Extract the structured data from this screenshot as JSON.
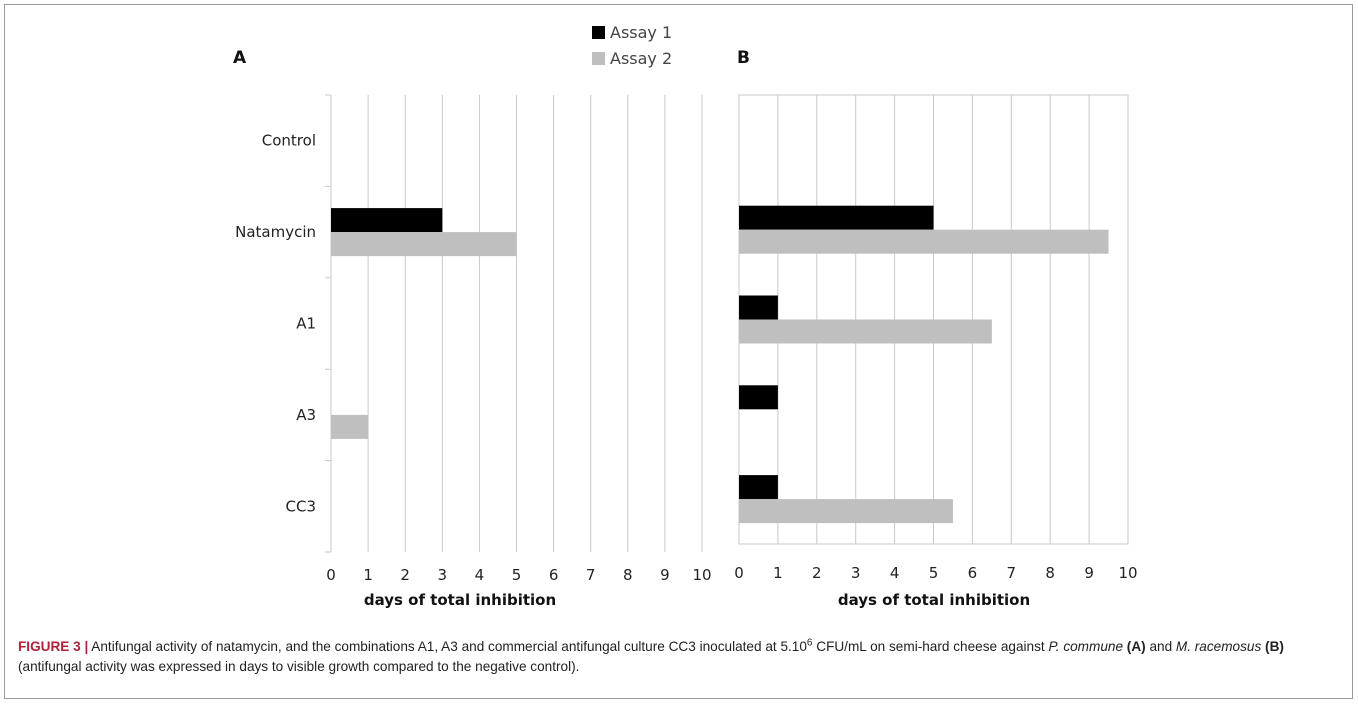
{
  "chart_data": [
    {
      "panel": "A",
      "type": "bar",
      "orientation": "horizontal",
      "categories": [
        "Control",
        "Natamycin",
        "A1",
        "A3",
        "CC3"
      ],
      "series": [
        {
          "name": "Assay 1",
          "color": "#000000",
          "values": [
            0,
            3,
            0,
            0,
            0
          ]
        },
        {
          "name": "Assay 2",
          "color": "#bfbfbf",
          "values": [
            0,
            5,
            0,
            1,
            0
          ]
        }
      ],
      "xlabel": "days of total inhibition",
      "ylabel": "",
      "xlim": [
        0,
        10
      ],
      "xticks": [
        "0",
        "1",
        "2",
        "3",
        "4",
        "5",
        "6",
        "7",
        "8",
        "9",
        "10"
      ],
      "grid": "vertical"
    },
    {
      "panel": "B",
      "type": "bar",
      "orientation": "horizontal",
      "categories": [
        "Control",
        "Natamycin",
        "A1",
        "A3",
        "CC3"
      ],
      "series": [
        {
          "name": "Assay 1",
          "color": "#000000",
          "values": [
            0,
            5,
            1,
            1,
            1
          ]
        },
        {
          "name": "Assay 2",
          "color": "#bfbfbf",
          "values": [
            0,
            9.5,
            6.5,
            0,
            5.5
          ]
        }
      ],
      "xlabel": "days of total inhibition",
      "ylabel": "",
      "xlim": [
        0,
        10
      ],
      "xticks": [
        "0",
        "1",
        "2",
        "3",
        "4",
        "5",
        "6",
        "7",
        "8",
        "9",
        "10"
      ],
      "grid": "vertical"
    }
  ],
  "legend": {
    "placement": "top-center",
    "items": [
      {
        "label": "Assay 1",
        "color": "#000000"
      },
      {
        "label": "Assay 2",
        "color": "#bfbfbf"
      }
    ]
  },
  "caption": {
    "figure_label": "FIGURE 3 |",
    "text_1": " Antifungal activity of natamycin, and the combinations A1, A3 and commercial antifungal culture CC3 inoculated at 5.10",
    "superscript": "6",
    "text_2": " CFU/mL on semi-hard cheese against ",
    "species_a": "P. commune",
    "panel_a_ref": "(A)",
    "text_3": " and ",
    "species_b": "M. racemosus",
    "panel_b_ref": "(B)",
    "text_4": " (antifungal activity was expressed in days to visible growth compared to the negative control)."
  }
}
